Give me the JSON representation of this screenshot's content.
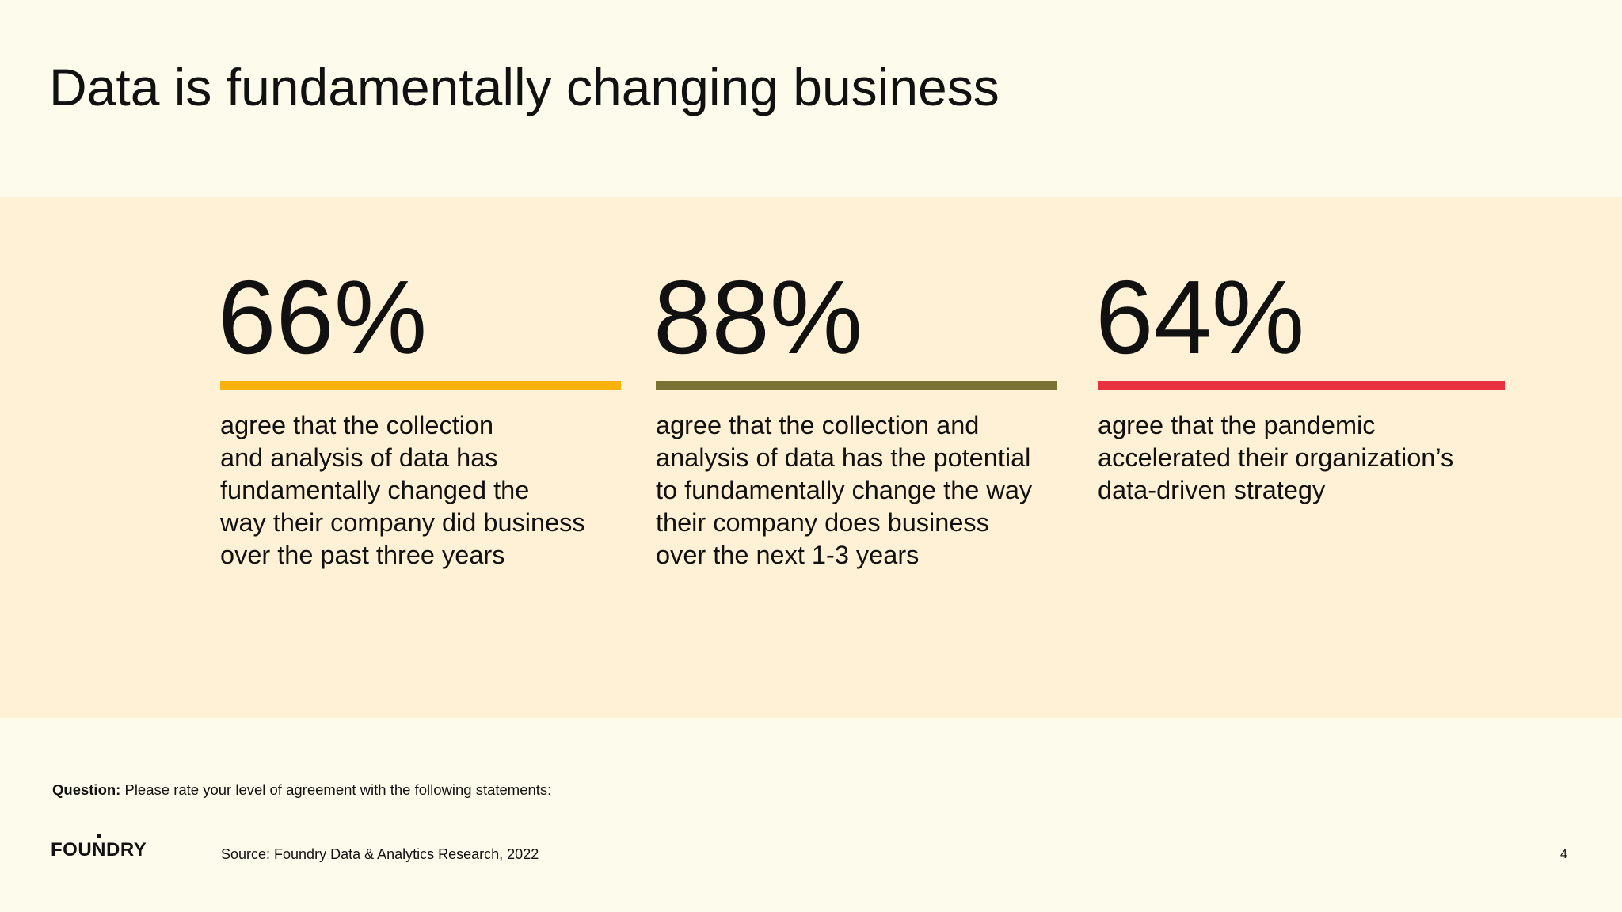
{
  "slide": {
    "title": "Data is fundamentally changing business",
    "stats": [
      {
        "value": "66%",
        "color": "#f9b20d",
        "lines": [
          "agree that the collection",
          "and analysis of data has",
          "fundamentally changed the",
          "way their company did business",
          "over the past three years"
        ]
      },
      {
        "value": "88%",
        "color": "#7a7232",
        "lines": [
          "agree that the collection and",
          "analysis of data has the potential",
          "to fundamentally change the way",
          "their company does business",
          "over the next 1-3 years"
        ]
      },
      {
        "value": "64%",
        "color": "#e8323f",
        "lines": [
          "agree that the pandemic",
          "accelerated their organization’s",
          "data-driven strategy"
        ]
      }
    ],
    "question_label": "Question:",
    "question_text": " Please rate your level of agreement with the following statements:",
    "logo_text": "FOUNDRY",
    "source": "Source: Foundry Data & Analytics Research, 2022",
    "page_number": "4"
  }
}
